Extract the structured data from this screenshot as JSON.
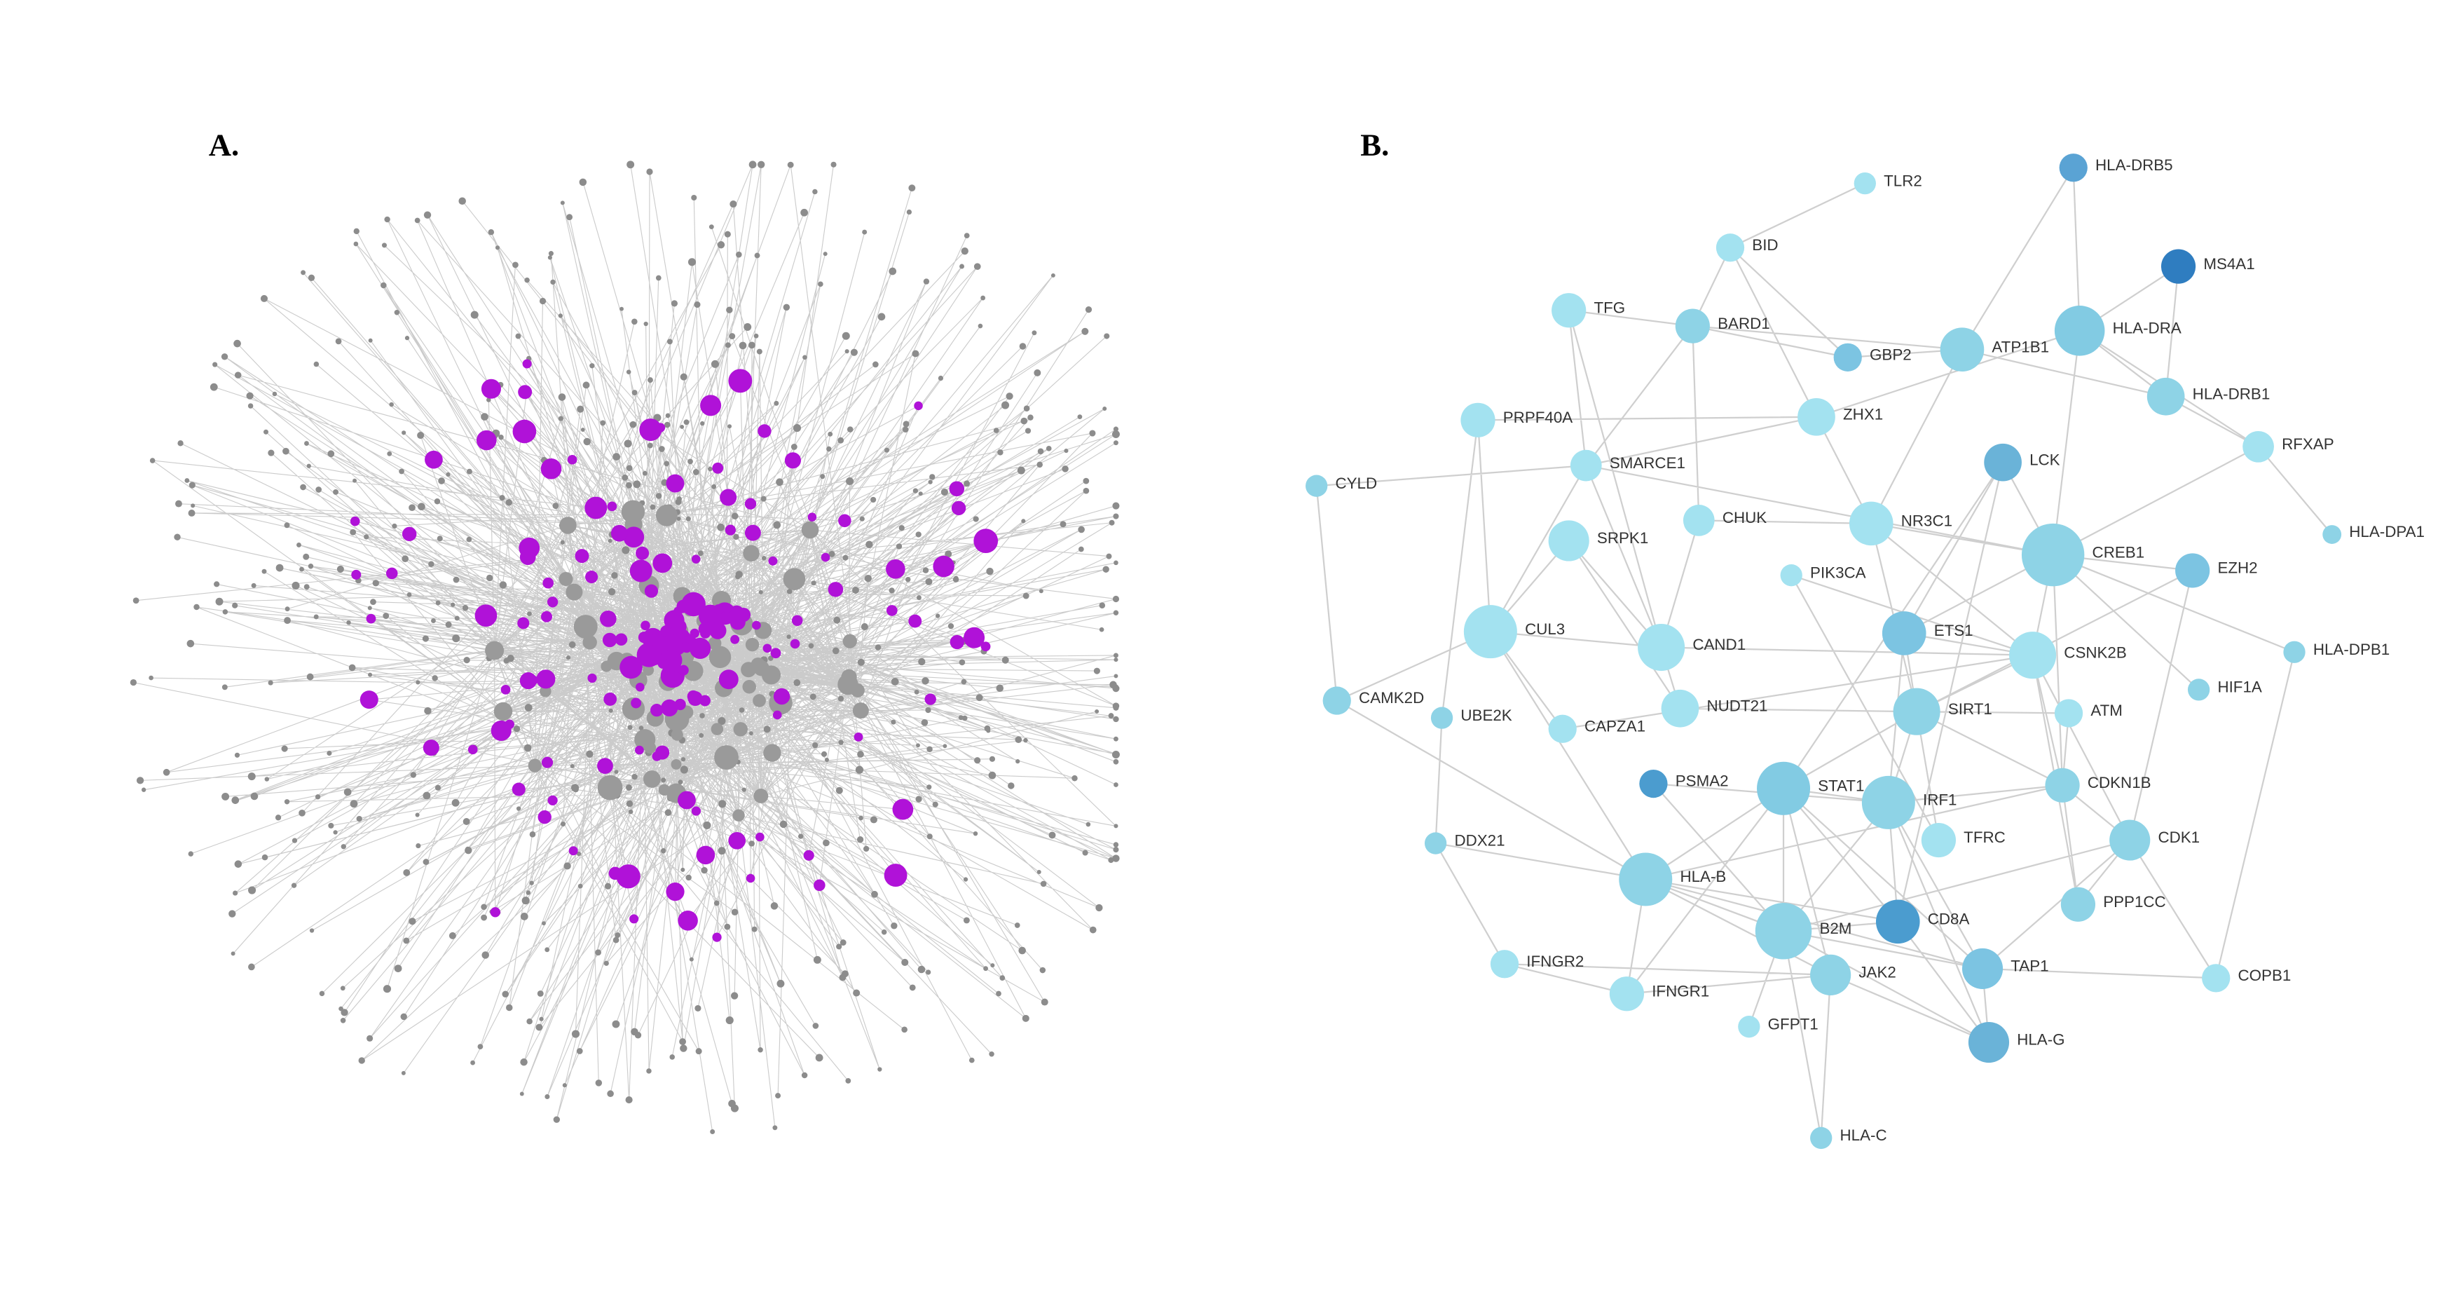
{
  "panels": [
    {
      "label": "A."
    },
    {
      "label": "B.",
      "nodes": [
        {
          "label": "TLR2",
          "color": "#a3e2f0"
        },
        {
          "label": "HLA-DRB5",
          "color": "#5aa3d4"
        },
        {
          "label": "BID",
          "color": "#a3e2f0"
        },
        {
          "label": "MS4A1",
          "color": "#2f7dc0"
        },
        {
          "label": "TFG",
          "color": "#a3e2f0"
        },
        {
          "label": "BARD1",
          "color": "#8ed3e6"
        },
        {
          "label": "GBP2",
          "color": "#7cc4e2"
        },
        {
          "label": "ATP1B1",
          "color": "#8ed3e6"
        },
        {
          "label": "HLA-DRA",
          "color": "#82cbe3"
        },
        {
          "label": "HLA-DRB1",
          "color": "#8ed3e6"
        },
        {
          "label": "PRPF40A",
          "color": "#a3e2f0"
        },
        {
          "label": "ZHX1",
          "color": "#a3e2f0"
        },
        {
          "label": "RFXAP",
          "color": "#a3e2f0"
        },
        {
          "label": "LCK",
          "color": "#6ab3d8"
        },
        {
          "label": "CYLD",
          "color": "#8ed3e6"
        },
        {
          "label": "SMARCE1",
          "color": "#a3e2f0"
        },
        {
          "label": "HLA-DPA1",
          "color": "#8ed3e6"
        },
        {
          "label": "CHUK",
          "color": "#a3e2f0"
        },
        {
          "label": "NR3C1",
          "color": "#a3e2f0"
        },
        {
          "label": "SRPK1",
          "color": "#a3e2f0"
        },
        {
          "label": "CREB1",
          "color": "#8ed3e6"
        },
        {
          "label": "EZH2",
          "color": "#7cc4e2"
        },
        {
          "label": "PIK3CA",
          "color": "#a3e2f0"
        },
        {
          "label": "CUL3",
          "color": "#a3e2f0"
        },
        {
          "label": "CAND1",
          "color": "#a3e2f0"
        },
        {
          "label": "ETS1",
          "color": "#7cc4e2"
        },
        {
          "label": "CSNK2B",
          "color": "#a3e2f0"
        },
        {
          "label": "HLA-DPB1",
          "color": "#8ed3e6"
        },
        {
          "label": "HIF1A",
          "color": "#8ed3e6"
        },
        {
          "label": "CAMK2D",
          "color": "#8ed3e6"
        },
        {
          "label": "UBE2K",
          "color": "#8ed3e6"
        },
        {
          "label": "NUDT21",
          "color": "#a3e2f0"
        },
        {
          "label": "SIRT1",
          "color": "#8ed3e6"
        },
        {
          "label": "ATM",
          "color": "#a3e2f0"
        },
        {
          "label": "CAPZA1",
          "color": "#a3e2f0"
        },
        {
          "label": "PSMA2",
          "color": "#4b9ccf"
        },
        {
          "label": "STAT1",
          "color": "#82cbe3"
        },
        {
          "label": "CDKN1B",
          "color": "#8ed3e6"
        },
        {
          "label": "IRF1",
          "color": "#8ed3e6"
        },
        {
          "label": "TFRC",
          "color": "#a3e2f0"
        },
        {
          "label": "CDK1",
          "color": "#8ed3e6"
        },
        {
          "label": "DDX21",
          "color": "#8ed3e6"
        },
        {
          "label": "HLA-B",
          "color": "#8ed3e6"
        },
        {
          "label": "CD8A",
          "color": "#4b9ccf"
        },
        {
          "label": "B2M",
          "color": "#8ed3e6"
        },
        {
          "label": "PPP1CC",
          "color": "#8ed3e6"
        },
        {
          "label": "TAP1",
          "color": "#7cc4e2"
        },
        {
          "label": "IFNGR2",
          "color": "#a3e2f0"
        },
        {
          "label": "JAK2",
          "color": "#8ed3e6"
        },
        {
          "label": "COPB1",
          "color": "#a3e2f0"
        },
        {
          "label": "IFNGR1",
          "color": "#a3e2f0"
        },
        {
          "label": "GFPT1",
          "color": "#a3e2f0"
        },
        {
          "label": "HLA-G",
          "color": "#6ab3d8"
        },
        {
          "label": "HLA-C",
          "color": "#8ed3e6"
        }
      ]
    }
  ]
}
